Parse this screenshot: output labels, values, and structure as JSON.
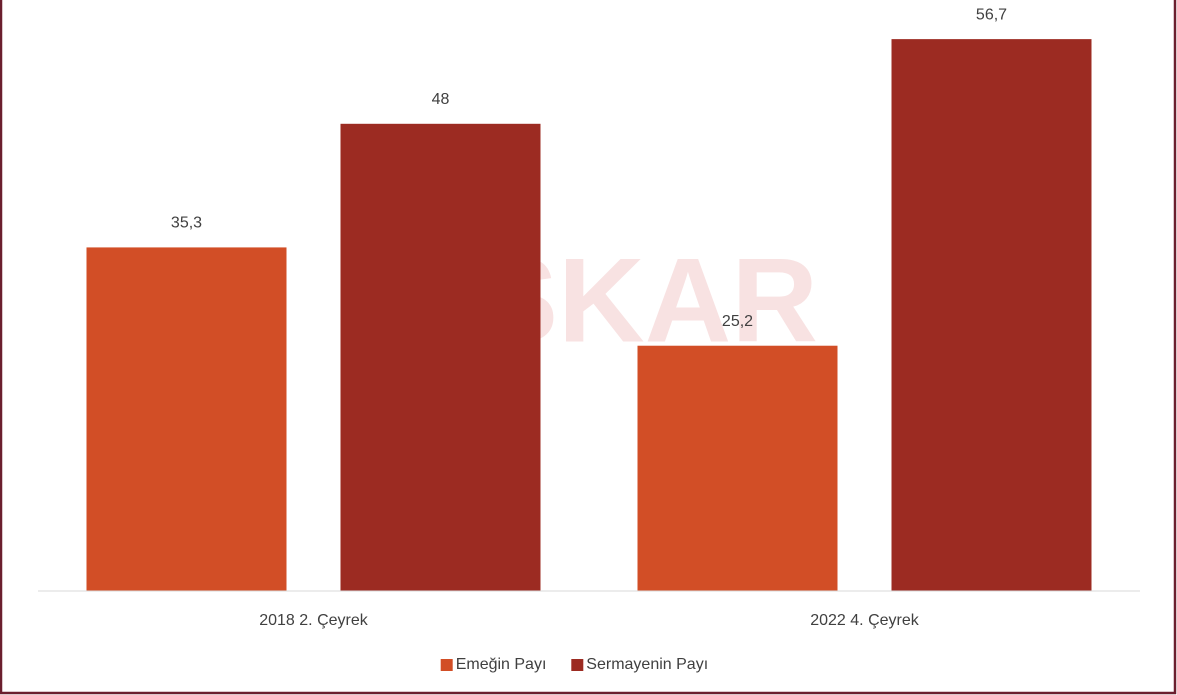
{
  "chart_data": {
    "type": "bar",
    "watermark": "DİSKAR",
    "categories": [
      "2018 2. Çeyrek",
      "2022 4. Çeyrek"
    ],
    "series": [
      {
        "name": "Emeğin Payı",
        "color": "#d24e26",
        "values": [
          35.3,
          25.2
        ],
        "value_labels": [
          "35,3",
          "25,2"
        ]
      },
      {
        "name": "Sermayenin Payı",
        "color": "#9c2b22",
        "values": [
          48,
          56.7
        ],
        "value_labels": [
          "48",
          "56,7"
        ]
      }
    ],
    "ylim": [
      0,
      60
    ],
    "legend": "bottom"
  }
}
